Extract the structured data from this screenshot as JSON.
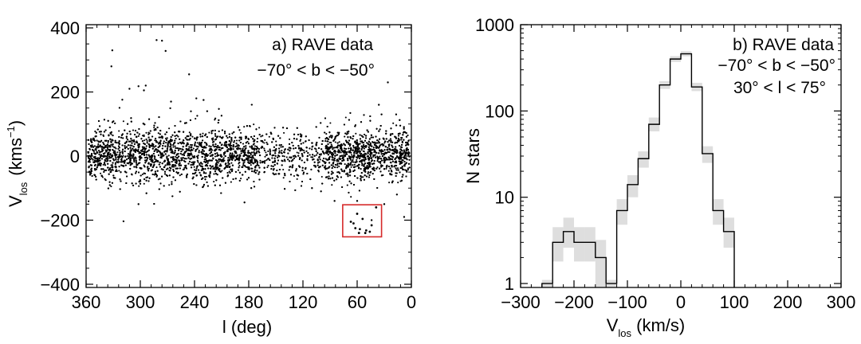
{
  "chart_data": [
    {
      "type": "scatter",
      "panel_label": "a) RAVE data",
      "annotation_line2": "−70° < b < −50°",
      "xlabel": "l (deg)",
      "ylabel_main": "V",
      "ylabel_sub": "los",
      "ylabel_unit": "(kms",
      "ylabel_unit_sup": "−1",
      "ylabel_unit_close": ")",
      "xlim": [
        360,
        0
      ],
      "ylim": [
        -410,
        410
      ],
      "x_ticks": [
        360,
        300,
        240,
        180,
        120,
        60,
        0
      ],
      "x_tick_labels": [
        "360",
        "300",
        "240",
        "180",
        "120",
        "60",
        "0"
      ],
      "y_ticks": [
        400,
        200,
        0,
        -200,
        -400
      ],
      "y_tick_labels": [
        "400",
        "200",
        "0",
        "−200",
        "−400"
      ],
      "main_band": {
        "description_stats": {
          "l_min": 2,
          "l_max": 358,
          "v_mean": 5,
          "v_sd": 38
        },
        "n_points": 9000
      },
      "outliers": [
        [
          331,
          330
        ],
        [
          332,
          280
        ],
        [
          276,
          360
        ],
        [
          282,
          362
        ],
        [
          272,
          328
        ],
        [
          312,
          210
        ],
        [
          302,
          218
        ],
        [
          296,
          205
        ],
        [
          294,
          220
        ],
        [
          266,
          170
        ],
        [
          246,
          255
        ],
        [
          238,
          180
        ],
        [
          230,
          175
        ],
        [
          226,
          140
        ],
        [
          140,
          -60
        ],
        [
          110,
          -100
        ],
        [
          100,
          -110
        ],
        [
          302,
          -150
        ],
        [
          36,
          160
        ],
        [
          8,
          -190
        ],
        [
          26,
          230
        ],
        [
          33,
          130
        ],
        [
          44,
          -200
        ],
        [
          60,
          -140
        ],
        [
          30,
          -150
        ],
        [
          16,
          -120
        ],
        [
          85,
          -140
        ]
      ],
      "highlight_points": [
        [
          67,
          -205
        ],
        [
          64,
          -210
        ],
        [
          62,
          -225
        ],
        [
          58,
          -240
        ],
        [
          54,
          -196
        ],
        [
          51,
          -240
        ],
        [
          50,
          -232
        ],
        [
          46,
          -236
        ],
        [
          60,
          -180
        ],
        [
          39,
          -160
        ],
        [
          44,
          -216
        ],
        [
          57,
          -228
        ]
      ],
      "highlight_box": {
        "l_range": [
          33,
          76
        ],
        "v_range": [
          -252,
          -152
        ],
        "color": "#d62a2a"
      }
    },
    {
      "type": "step",
      "panel_label": "b) RAVE data",
      "annotation_line2": "−70° < b < −50°",
      "annotation_line3": "30° < l < 75°",
      "xlabel_main": "V",
      "xlabel_sub": "los",
      "xlabel_unit": " (km/s)",
      "ylabel": "N stars",
      "xlim": [
        -300,
        300
      ],
      "ylim": [
        0.9,
        1000
      ],
      "y_scale": "log",
      "x_ticks": [
        -300,
        -200,
        -100,
        0,
        100,
        200,
        300
      ],
      "x_tick_labels": [
        "−300",
        "−200",
        "−100",
        "0",
        "100",
        "200",
        "300"
      ],
      "y_ticks": [
        1,
        10,
        100,
        1000
      ],
      "y_tick_labels": [
        "1",
        "10",
        "100",
        "1000"
      ],
      "bin_edges": [
        -260,
        -240,
        -220,
        -200,
        -180,
        -160,
        -140,
        -120,
        -100,
        -80,
        -60,
        -40,
        -20,
        0,
        20,
        40,
        60,
        80,
        100
      ],
      "counts": [
        1,
        3,
        4,
        3,
        3,
        2,
        1,
        7,
        14,
        28,
        70,
        200,
        400,
        460,
        190,
        32,
        7,
        4
      ],
      "errors_low": [
        0.9,
        1.8,
        2.6,
        1.8,
        1.8,
        0.9,
        0.9,
        4.8,
        10,
        22,
        58,
        180,
        370,
        430,
        170,
        25,
        4.8,
        2.6
      ],
      "errors_high": [
        1.1,
        4.5,
        5.8,
        4.5,
        4.5,
        3.2,
        1.1,
        9.5,
        18,
        34,
        84,
        222,
        432,
        492,
        212,
        39,
        9.5,
        5.8
      ],
      "error_band_color": "#dedede"
    }
  ]
}
